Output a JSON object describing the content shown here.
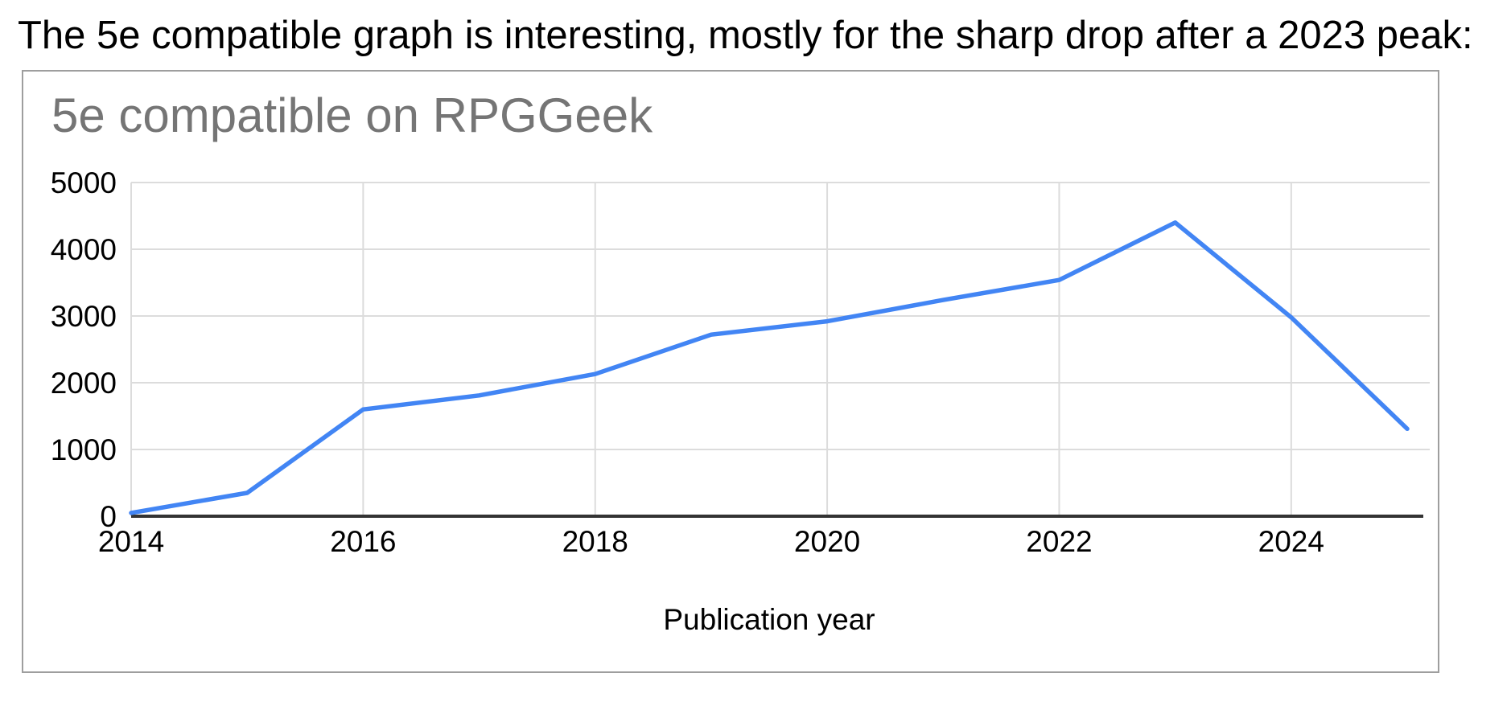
{
  "caption": "The 5e compatible graph is interesting, mostly for the sharp drop after a 2023 peak:",
  "chart_data": {
    "type": "line",
    "title": "5e compatible on RPGGeek",
    "xlabel": "Publication year",
    "ylabel": "",
    "x": [
      2014,
      2015,
      2016,
      2017,
      2018,
      2019,
      2020,
      2021,
      2022,
      2023,
      2024,
      2025
    ],
    "values": [
      50,
      350,
      1600,
      1810,
      2130,
      2720,
      2920,
      3240,
      3540,
      4400,
      2980,
      1310
    ],
    "xticks": [
      2014,
      2016,
      2018,
      2020,
      2022,
      2024
    ],
    "yticks": [
      0,
      1000,
      2000,
      3000,
      4000,
      5000
    ],
    "xlim": [
      2014,
      2025
    ],
    "ylim": [
      0,
      5000
    ],
    "grid": true,
    "legend": "none",
    "line_color": "#4285f4",
    "title_color": "#757575",
    "grid_color": "#dcdcdc",
    "axis_color": "#333333",
    "label_color": "#000000",
    "card_border_color": "#9e9e9e"
  }
}
